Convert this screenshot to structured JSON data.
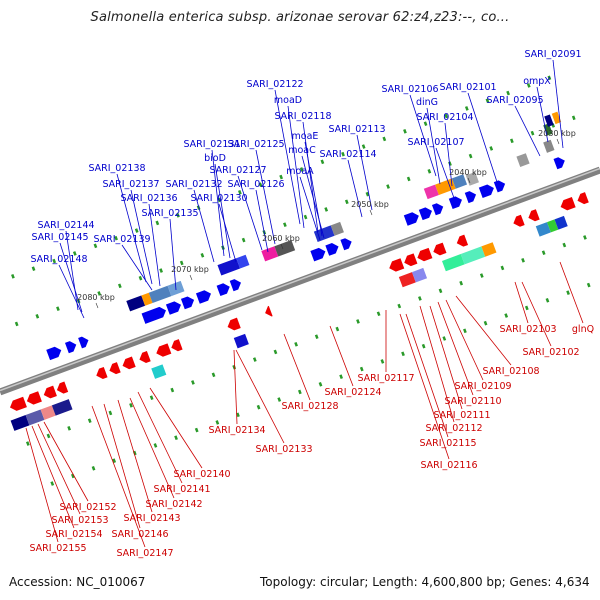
{
  "title": "Salmonella enterica subsp. arizonae serovar 62:z4,z23:--, co...",
  "footer": {
    "accession": "Accession: NC_010067",
    "summary": "Topology: circular; Length: 4,600,800 bp; Genes: 4,634"
  },
  "colors": {
    "backbone": "#808080",
    "top_strand_label": "#0000cc",
    "bottom_strand_label": "#cc0000",
    "forward_gene": "#0000ee",
    "reverse_gene": "#ee0000",
    "ruler_text": "#333333"
  },
  "ruler_ticks": [
    "2030 kbp",
    "2040 kbp",
    "2050 kbp",
    "2060 kbp",
    "2070 kbp",
    "2080 kbp"
  ],
  "top_labels": [
    "SARI_02091",
    "ompX",
    "SARI_02095",
    "SARI_02101",
    "SARI_02106",
    "dinG",
    "SARI_02104",
    "SARI_02107",
    "SARI_02113",
    "SARI_02114",
    "SARI_02122",
    "moaD",
    "SARI_02118",
    "moaE",
    "moaC",
    "moaA",
    "SARI_02125",
    "SARI_02127",
    "SARI_02126",
    "SARI_02131",
    "bioD",
    "SARI_02132",
    "SARI_02130",
    "SARI_02138",
    "SARI_02137",
    "SARI_02136",
    "SARI_02135",
    "SARI_02144",
    "SARI_02145",
    "SARI_02139",
    "SARI_02148"
  ],
  "bottom_labels": [
    "SARI_02103",
    "glnQ",
    "SARI_02102",
    "SARI_02108",
    "SARI_02109",
    "SARI_02110",
    "SARI_02111",
    "SARI_02112",
    "SARI_02115",
    "SARI_02116",
    "SARI_02117",
    "SARI_02124",
    "SARI_02128",
    "SARI_02133",
    "SARI_02134",
    "SARI_02140",
    "SARI_02141",
    "SARI_02142",
    "SARI_02143",
    "SARI_02146",
    "SARI_02147",
    "SARI_02152",
    "SARI_02153",
    "SARI_02154",
    "SARI_02155"
  ]
}
